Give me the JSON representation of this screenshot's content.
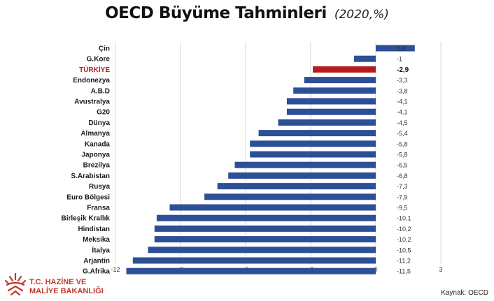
{
  "header": {
    "title": "OECD Büyüme Tahminleri",
    "subtitle": "(2020,%)"
  },
  "footer": {
    "org_line1": "T.C. HAZİNE VE",
    "org_line2": "MALİYE BAKANLIĞI",
    "source": "Kaynak: OECD"
  },
  "colors": {
    "bar": "#2c4f97",
    "highlight": "#b71c1c",
    "highlight_label": "#b71c1c",
    "grid": "#d9d9d9",
    "logo": "#c0392b"
  },
  "chart_data": {
    "type": "bar",
    "orientation": "horizontal",
    "title": "OECD Büyüme Tahminleri",
    "subtitle": "(2020,%)",
    "categories": [
      "Çin",
      "G.Kore",
      "TÜRKİYE",
      "Endonezya",
      "A.B.D",
      "Avustralya",
      "G20",
      "Dünya",
      "Almanya",
      "Kanada",
      "Japonya",
      "Brezilya",
      "S.Arabistan",
      "Rusya",
      "Euro Bölgesi",
      "Fransa",
      "Birleşik Krallık",
      "Hindistan",
      "Meksika",
      "İtalya",
      "Arjantin",
      "G.Afrika"
    ],
    "values": [
      1.8,
      -1,
      -2.9,
      -3.3,
      -3.8,
      -4.1,
      -4.1,
      -4.5,
      -5.4,
      -5.8,
      -5.8,
      -6.5,
      -6.8,
      -7.3,
      -7.9,
      -9.5,
      -10.1,
      -10.2,
      -10.2,
      -10.5,
      -11.2,
      -11.5
    ],
    "value_labels": [
      "1,8",
      "-1",
      "-2,9",
      "-3,3",
      "-3,8",
      "-4,1",
      "-4,1",
      "-4,5",
      "-5,4",
      "-5,8",
      "-5,8",
      "-6,5",
      "-6,8",
      "-7,3",
      "-7,9",
      "-9,5",
      "-10,1",
      "-10,2",
      "-10,2",
      "-10,5",
      "-11,2",
      "-11,5"
    ],
    "highlight": "TÜRKİYE",
    "xlim": [
      -12,
      3
    ],
    "xticks": [
      -12,
      -9,
      -6,
      -3,
      0,
      3
    ],
    "xtick_labels": [
      "-12",
      "-9",
      "-6",
      "-3",
      "0",
      "3"
    ],
    "grid": true
  }
}
